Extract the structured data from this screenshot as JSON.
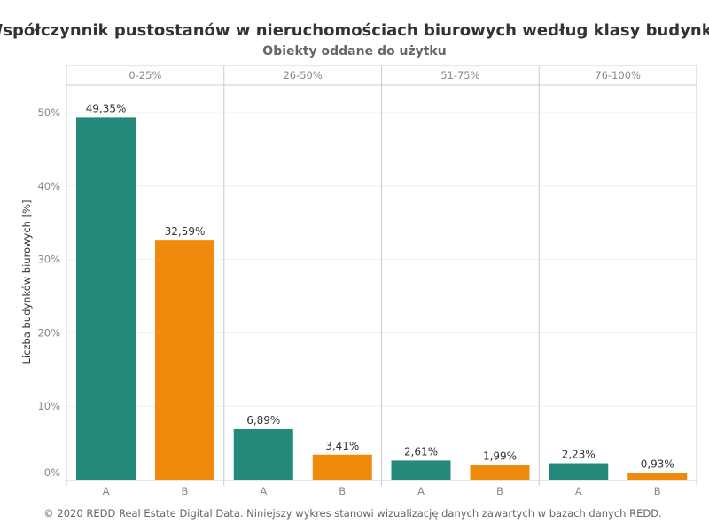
{
  "chart_data": {
    "type": "bar",
    "title": "Współczynnik pustostanów w nieruchomościach biurowych według klasy budynku",
    "subtitle": "Obiekty oddane do użytku",
    "ylabel": "Liczba budynków biurowych [%]",
    "xlabel": "",
    "ylim": [
      0,
      52
    ],
    "yticks": [
      0,
      10,
      20,
      30,
      40,
      50
    ],
    "ytick_labels": [
      "0%",
      "10%",
      "20%",
      "30%",
      "40%",
      "50%"
    ],
    "grid": true,
    "groups": [
      {
        "label": "0-25%",
        "bars": [
          {
            "category": "A",
            "value": 49.35,
            "label": "49,35%"
          },
          {
            "category": "B",
            "value": 32.59,
            "label": "32,59%"
          }
        ]
      },
      {
        "label": "26-50%",
        "bars": [
          {
            "category": "A",
            "value": 6.89,
            "label": "6,89%"
          },
          {
            "category": "B",
            "value": 3.41,
            "label": "3,41%"
          }
        ]
      },
      {
        "label": "51-75%",
        "bars": [
          {
            "category": "A",
            "value": 2.61,
            "label": "2,61%"
          },
          {
            "category": "B",
            "value": 1.99,
            "label": "1,99%"
          }
        ]
      },
      {
        "label": "76-100%",
        "bars": [
          {
            "category": "A",
            "value": 2.23,
            "label": "2,23%"
          },
          {
            "category": "B",
            "value": 0.93,
            "label": "0,93%"
          }
        ]
      }
    ],
    "colors": {
      "A": "#23897a",
      "B": "#ef8a0d"
    }
  },
  "footer": "© 2020 REDD Real Estate Digital Data. Niniejszy wykres stanowi wizualizację danych zawartych w bazach danych REDD."
}
